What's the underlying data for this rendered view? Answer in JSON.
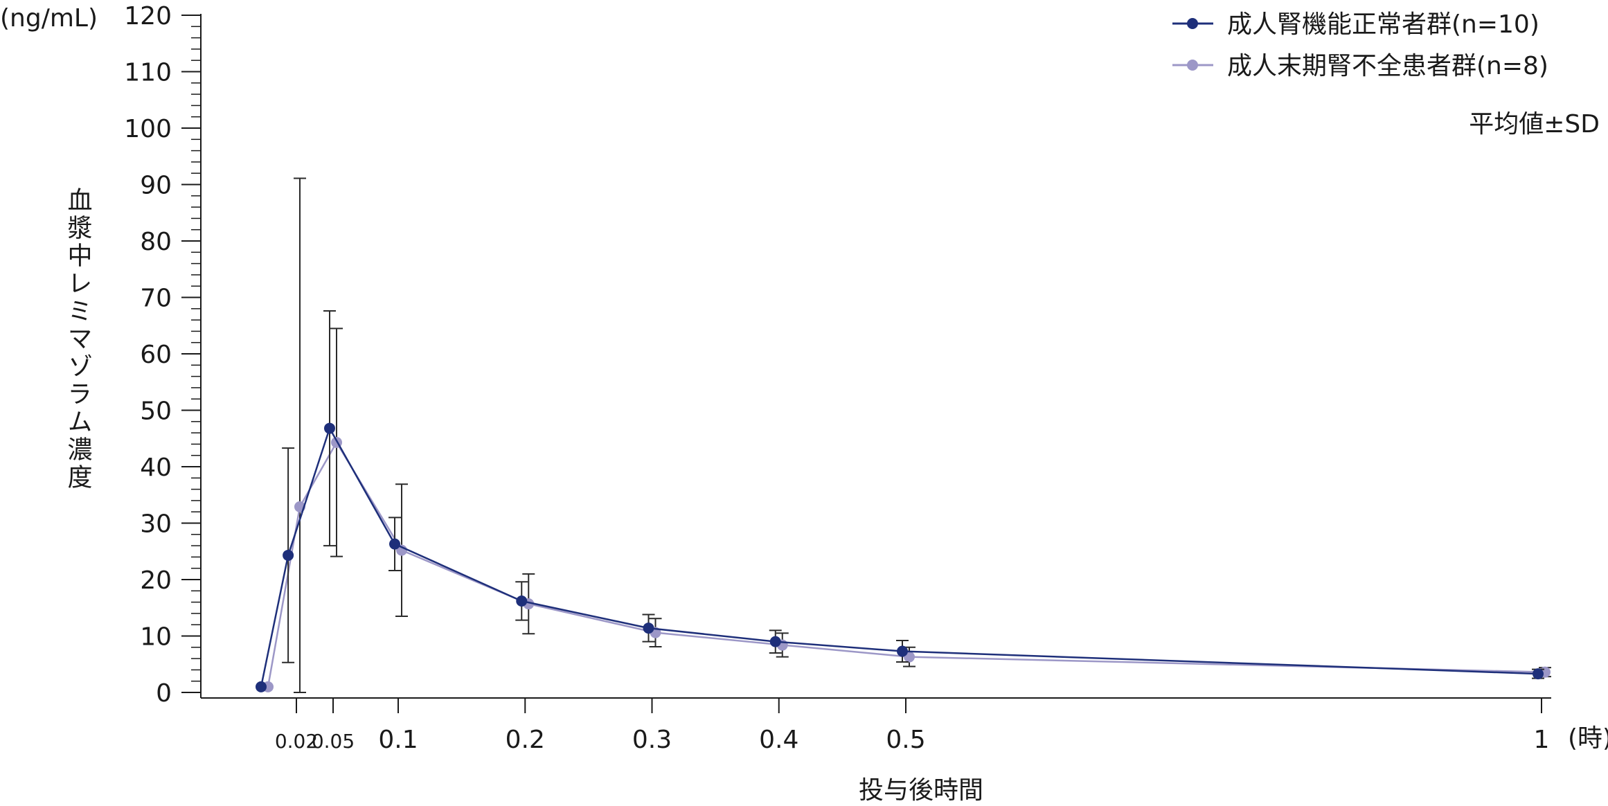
{
  "chart_data": {
    "type": "line",
    "yunit": "(ng/mL)",
    "ylabel": "血漿中レミマゾラム濃度",
    "xlabel": "投与後時間",
    "xunit": "(時)",
    "ylim": [
      0,
      120
    ],
    "yticks": [
      0,
      10,
      20,
      30,
      40,
      50,
      60,
      70,
      80,
      90,
      100,
      110,
      120
    ],
    "xticks": [
      {
        "value": 0.02,
        "label": "0.02"
      },
      {
        "value": 0.05,
        "label": "0.05"
      },
      {
        "value": 0.1,
        "label": "0.1"
      },
      {
        "value": 0.2,
        "label": "0.2"
      },
      {
        "value": 0.3,
        "label": "0.3"
      },
      {
        "value": 0.4,
        "label": "0.4"
      },
      {
        "value": 0.5,
        "label": "0.5"
      },
      {
        "value": 1,
        "label": "1"
      }
    ],
    "note": "平均値±SD",
    "legend_position": "top-right",
    "series": [
      {
        "name": "成人腎機能正常者群(n=10)",
        "color": "#1e2f7a",
        "points": [
          {
            "x": 0.0,
            "y": 1.0,
            "sd": 0
          },
          {
            "x": 0.017,
            "y": 24.3,
            "sd": 19.0
          },
          {
            "x": 0.05,
            "y": 46.8,
            "sd": 20.8
          },
          {
            "x": 0.1,
            "y": 26.3,
            "sd": 4.7
          },
          {
            "x": 0.2,
            "y": 16.2,
            "sd": 3.4
          },
          {
            "x": 0.3,
            "y": 11.4,
            "sd": 2.4
          },
          {
            "x": 0.4,
            "y": 9.0,
            "sd": 2.0
          },
          {
            "x": 0.5,
            "y": 7.3,
            "sd": 1.9
          },
          {
            "x": 1.0,
            "y": 3.3,
            "sd": 0.8
          }
        ]
      },
      {
        "name": "成人末期腎不全患者群(n=8)",
        "color": "#9c97c7",
        "points": [
          {
            "x": 0.0,
            "y": 1.0,
            "sd": 0
          },
          {
            "x": 0.02,
            "y": 32.9,
            "sd": 58.2
          },
          {
            "x": 0.05,
            "y": 44.3,
            "sd": 20.2
          },
          {
            "x": 0.1,
            "y": 25.2,
            "sd": 11.7
          },
          {
            "x": 0.2,
            "y": 15.7,
            "sd": 5.3
          },
          {
            "x": 0.3,
            "y": 10.6,
            "sd": 2.5
          },
          {
            "x": 0.4,
            "y": 8.4,
            "sd": 2.1
          },
          {
            "x": 0.5,
            "y": 6.3,
            "sd": 1.7
          },
          {
            "x": 1.0,
            "y": 3.6,
            "sd": 0.8
          }
        ]
      }
    ]
  }
}
